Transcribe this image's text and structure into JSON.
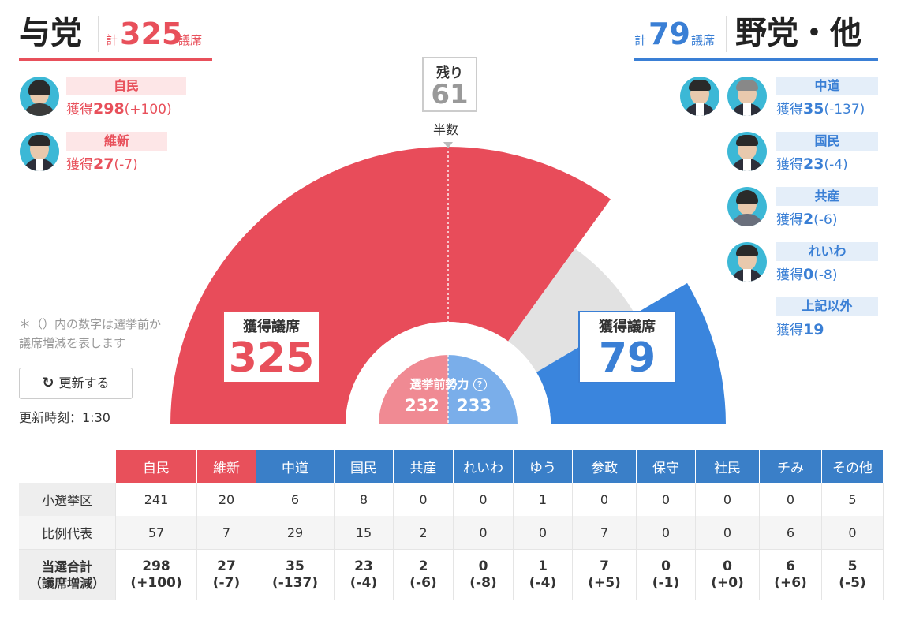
{
  "ruling": {
    "title": "与党",
    "total_prefix": "計",
    "total": "325",
    "total_suffix": "議席",
    "parties": [
      {
        "name": "自民",
        "seats_label": "獲得",
        "seats": "298",
        "change": "(+100)"
      },
      {
        "name": "維新",
        "seats_label": "獲得",
        "seats": "27",
        "change": "(-7)"
      }
    ]
  },
  "opposition": {
    "title": "野党・他",
    "total_prefix": "計",
    "total": "79",
    "total_suffix": "議席",
    "parties": [
      {
        "name": "中道",
        "seats_label": "獲得",
        "seats": "35",
        "change": "(-137)"
      },
      {
        "name": "国民",
        "seats_label": "獲得",
        "seats": "23",
        "change": "(-4)"
      },
      {
        "name": "共産",
        "seats_label": "獲得",
        "seats": "2",
        "change": "(-6)"
      },
      {
        "name": "れいわ",
        "seats_label": "獲得",
        "seats": "0",
        "change": "(-8)"
      },
      {
        "name": "上記以外",
        "seats_label": "獲得",
        "seats": "19",
        "change": ""
      }
    ]
  },
  "remaining": {
    "label": "残り",
    "value": "61"
  },
  "majority_label": "半数",
  "note_line1": "＊（）内の数字は選挙前か",
  "note_line2": "議席増減を表します",
  "refresh_button": "更新する",
  "update_time": "更新時刻：1:30",
  "colors": {
    "ruling": "#e84c5a",
    "opposition": "#3a85dd",
    "remaining": "#e2e2e2"
  },
  "chart_data": {
    "type": "pie",
    "subtype": "semicircle",
    "total_seats": 465,
    "majority_line": 233,
    "slices": [
      {
        "name": "与党",
        "value": 325
      },
      {
        "name": "残り",
        "value": 61
      },
      {
        "name": "野党・他",
        "value": 79
      }
    ],
    "boxes": [
      {
        "label": "獲得議席",
        "value": "325"
      },
      {
        "label": "獲得議席",
        "value": "79"
      }
    ],
    "pre_election": {
      "label": "選挙前勢力",
      "ruling": 232,
      "opposition": 233
    }
  },
  "table": {
    "headers": [
      "自民",
      "維新",
      "中道",
      "国民",
      "共産",
      "れいわ",
      "ゆう",
      "参政",
      "保守",
      "社民",
      "チみ",
      "その他"
    ],
    "rows": [
      {
        "label": "小選挙区",
        "values": [
          "241",
          "20",
          "6",
          "8",
          "0",
          "0",
          "1",
          "0",
          "0",
          "0",
          "0",
          "5"
        ]
      },
      {
        "label": "比例代表",
        "values": [
          "57",
          "7",
          "29",
          "15",
          "2",
          "0",
          "0",
          "7",
          "0",
          "0",
          "6",
          "0"
        ]
      }
    ],
    "total_label1": "当選合計",
    "total_label2": "（議席増減）",
    "totals": [
      "298",
      "27",
      "35",
      "23",
      "2",
      "0",
      "1",
      "7",
      "0",
      "0",
      "6",
      "5"
    ],
    "changes": [
      "(+100)",
      "(-7)",
      "(-137)",
      "(-4)",
      "(-6)",
      "(-8)",
      "(-4)",
      "(+5)",
      "(-1)",
      "(+0)",
      "(+6)",
      "(-5)"
    ]
  }
}
